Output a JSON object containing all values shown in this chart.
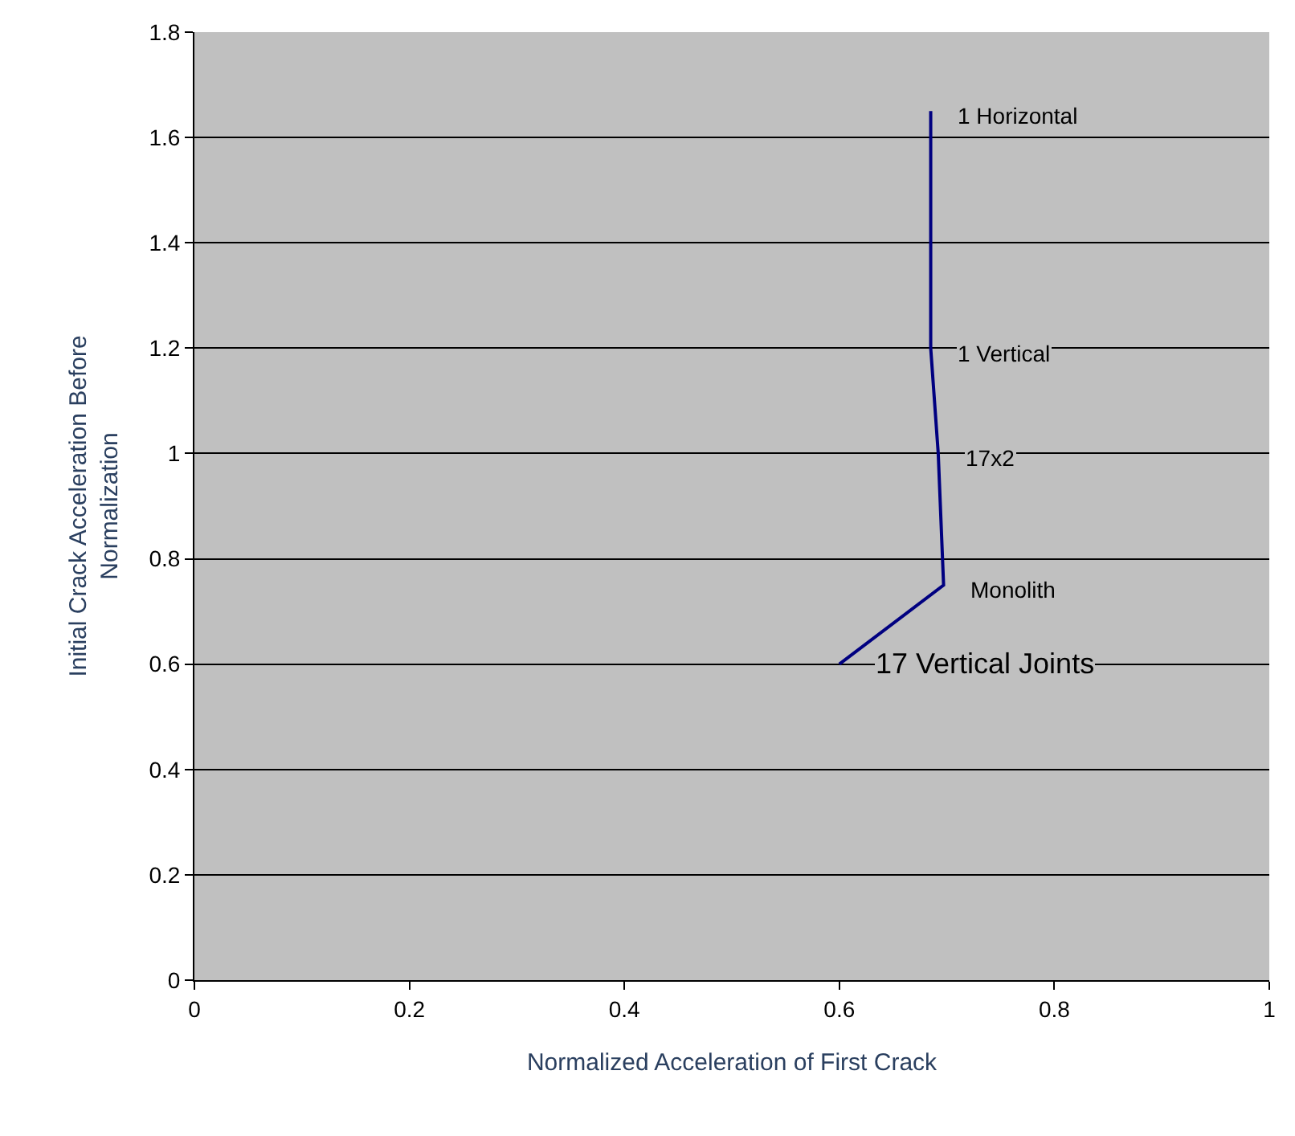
{
  "chart_data": {
    "type": "line",
    "xlabel": "Normalized Acceleration of First Crack",
    "ylabel": "Initial Crack Acceleration Before Normalization",
    "x": [
      0.6,
      0.697,
      0.692,
      0.685,
      0.685
    ],
    "series": [
      {
        "color": "#000080",
        "values": [
          0.6,
          0.75,
          1.0,
          1.2,
          1.65
        ]
      }
    ],
    "xlim": [
      0,
      1
    ],
    "xticks": [
      0,
      0.2,
      0.4,
      0.6,
      0.8,
      1
    ],
    "ylim": [
      0,
      1.8
    ],
    "yticks": [
      0,
      0.2,
      0.4,
      0.6,
      0.8,
      1,
      1.2,
      1.4,
      1.6,
      1.8
    ],
    "grid": "y",
    "marker": "none",
    "line_style": "solid",
    "annotations": [
      {
        "text": "17 Vertical Joints",
        "x": 0.6,
        "y": 0.6
      },
      {
        "text": "Monolith",
        "x": 0.697,
        "y": 0.75
      },
      {
        "text": "17x2",
        "x": 0.692,
        "y": 1.0
      },
      {
        "text": "1 Vertical",
        "x": 0.685,
        "y": 1.2
      },
      {
        "text": "1 Horizontal",
        "x": 0.685,
        "y": 1.65
      }
    ]
  }
}
